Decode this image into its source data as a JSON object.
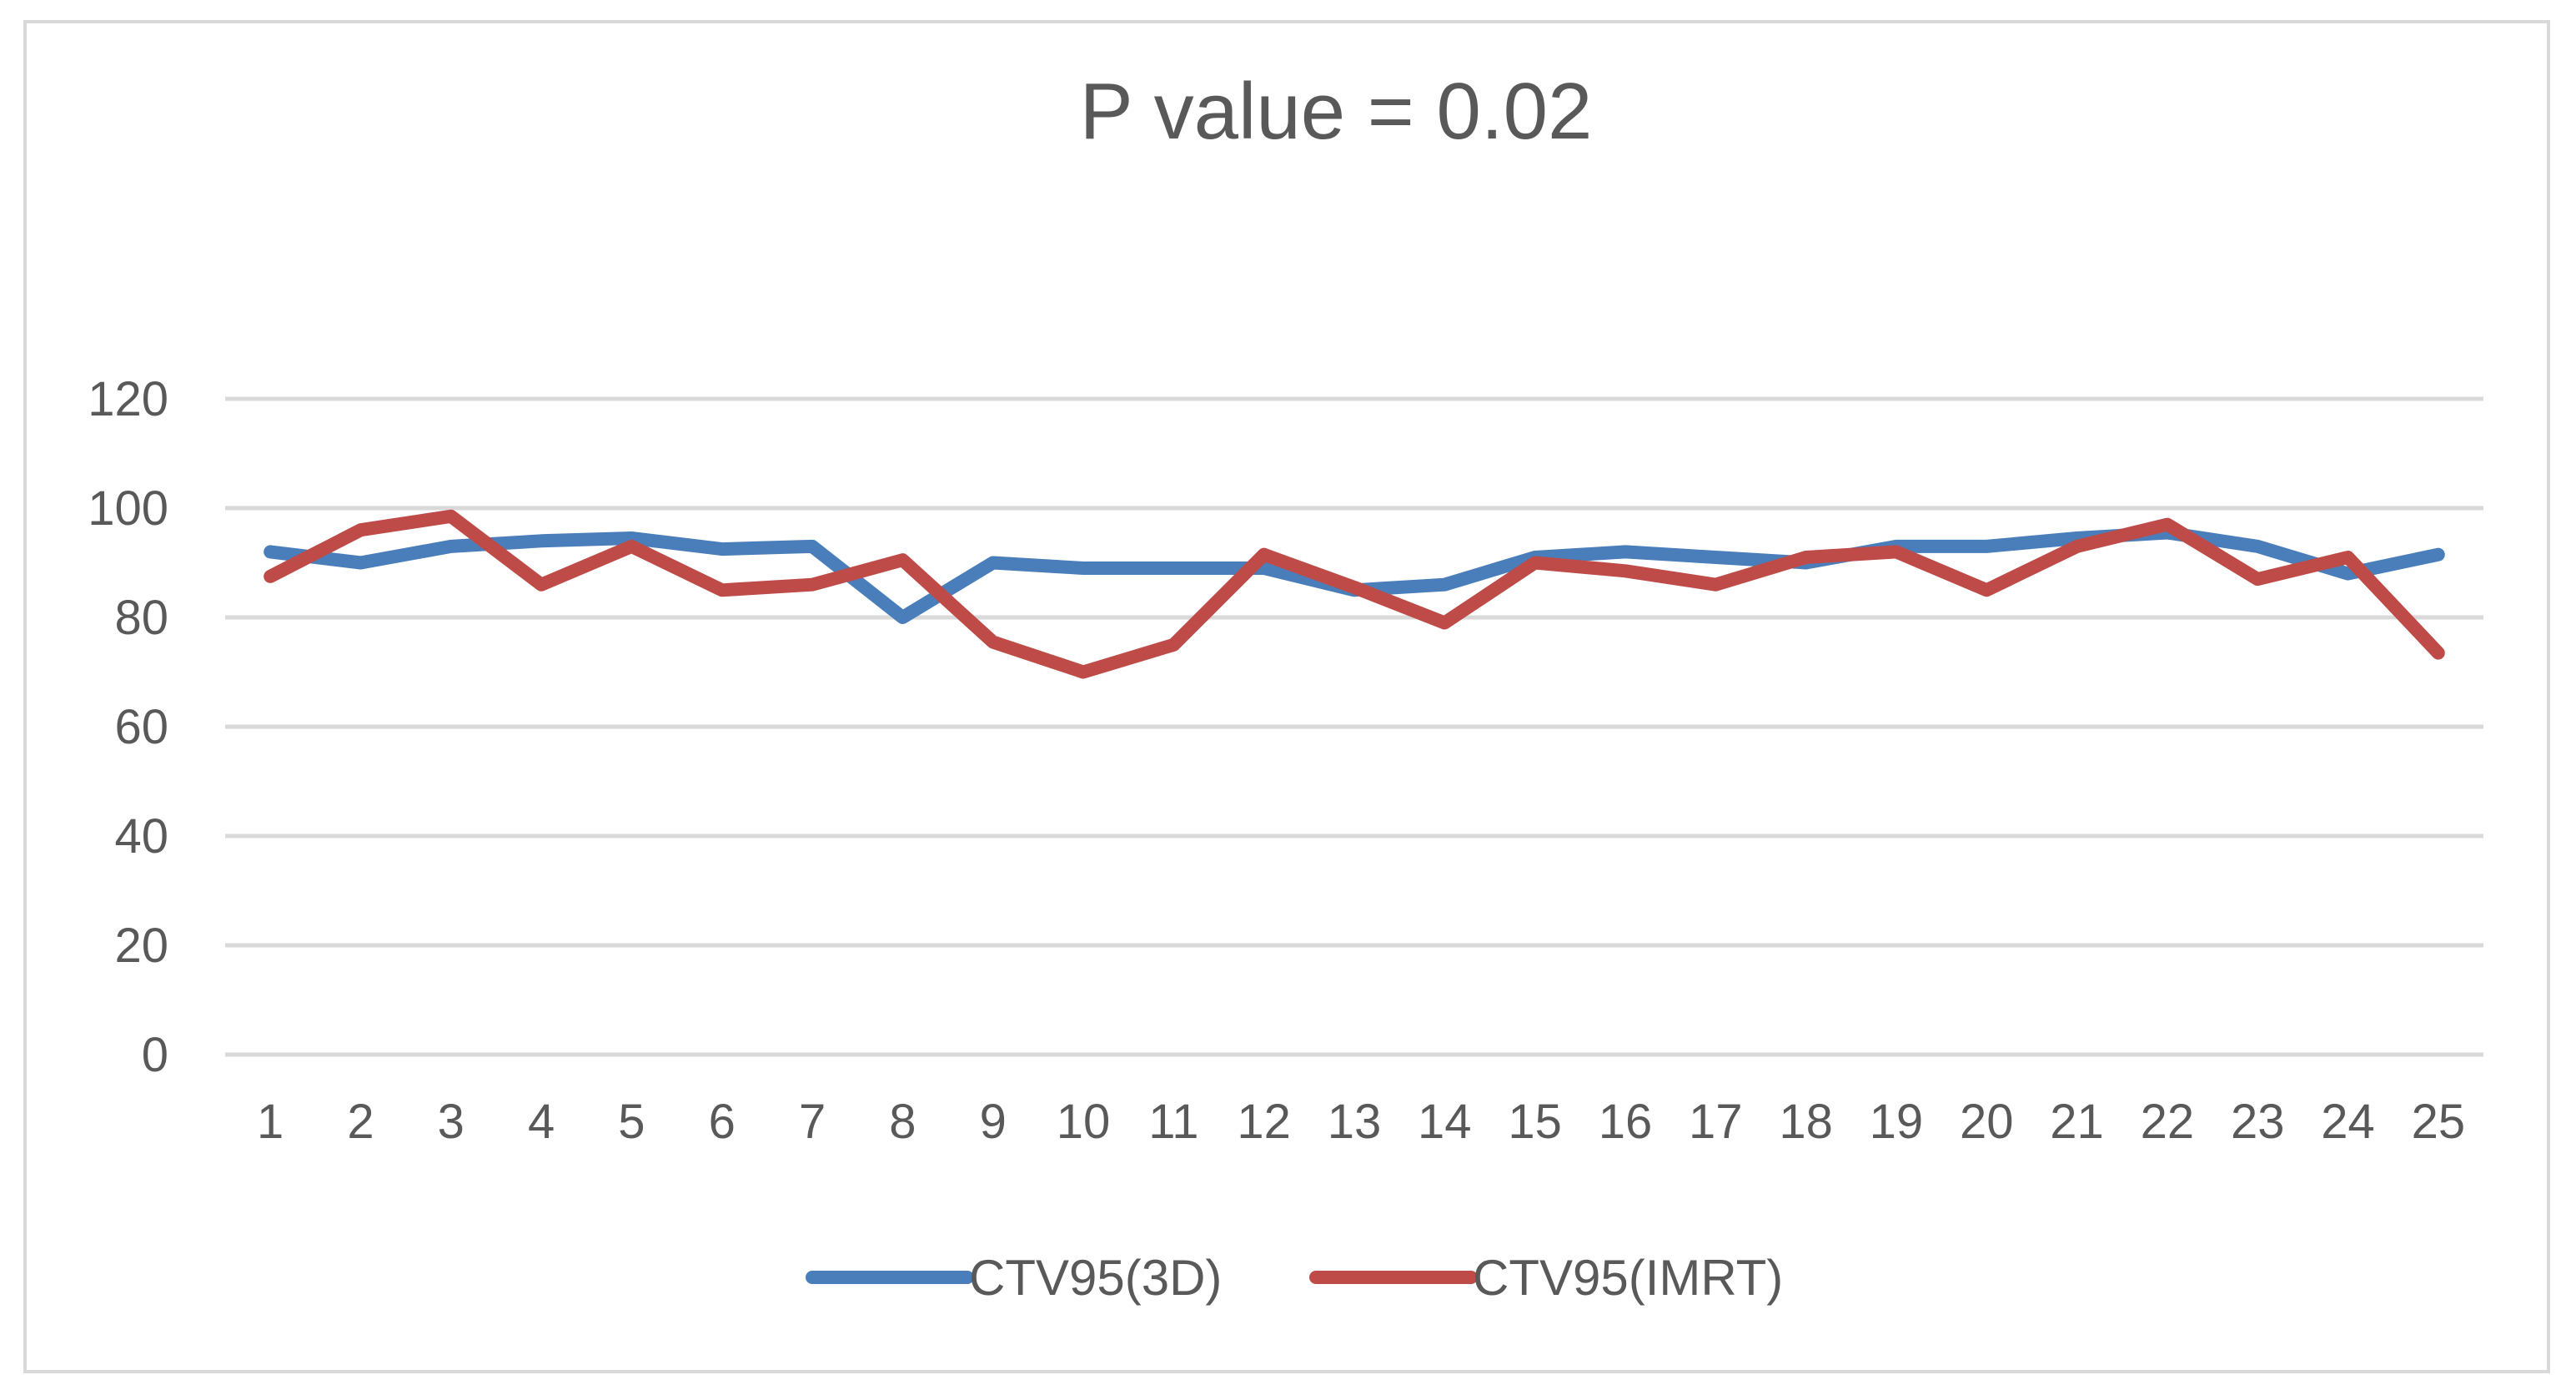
{
  "chart_data": {
    "type": "line",
    "title": "P value = 0.02",
    "xlabel": "",
    "ylabel": "",
    "categories": [
      "1",
      "2",
      "3",
      "4",
      "5",
      "6",
      "7",
      "8",
      "9",
      "10",
      "11",
      "12",
      "13",
      "14",
      "15",
      "16",
      "17",
      "18",
      "19",
      "20",
      "21",
      "22",
      "23",
      "24",
      "25"
    ],
    "yticks": [
      "0",
      "20",
      "40",
      "60",
      "80",
      "100",
      "120"
    ],
    "ylim": [
      0,
      120
    ],
    "grid": true,
    "legend_position": "bottom",
    "series": [
      {
        "name": "CTV95(3D)",
        "color": "#4a7ebb",
        "values": [
          92,
          90,
          93,
          94,
          94.5,
          92.5,
          93,
          80,
          90,
          89,
          89,
          89,
          85,
          86,
          91,
          92,
          91,
          90,
          93,
          93,
          94.5,
          95.5,
          93,
          88,
          91.5
        ]
      },
      {
        "name": "CTV95(IMRT)",
        "color": "#be4b48",
        "values": [
          87.5,
          96,
          98.5,
          86,
          93,
          85,
          86,
          90.5,
          75.5,
          70,
          75,
          91.5,
          85.5,
          79,
          90,
          88.5,
          86,
          91,
          92,
          85,
          93,
          97,
          87,
          91,
          73.5
        ]
      }
    ]
  }
}
